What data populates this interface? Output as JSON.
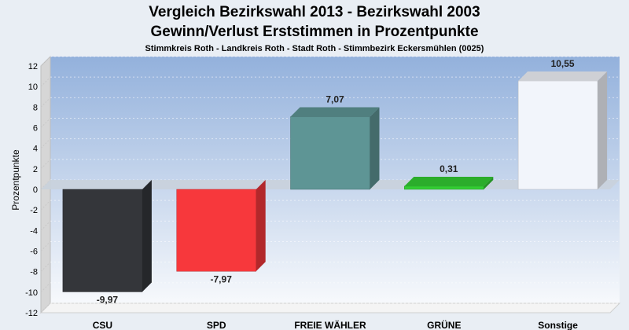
{
  "chart_data": {
    "type": "bar",
    "title": [
      "Vergleich Bezirkswahl 2013 - Bezirkswahl 2003",
      "Gewinn/Verlust Erststimmen in Prozentpunkte"
    ],
    "subtitle": "Stimmkreis Roth - Landkreis Roth - Stadt Roth - Stimmbezirk Eckersmühlen (0025)",
    "ylabel": "Prozentpunkte",
    "xlabel": "",
    "categories": [
      "CSU",
      "SPD",
      "FREIE WÄHLER",
      "GRÜNE",
      "Sonstige"
    ],
    "values": [
      -9.97,
      -7.97,
      7.07,
      0.31,
      10.55
    ],
    "value_labels": [
      "-9,97",
      "-7,97",
      "7,07",
      "0,31",
      "10,55"
    ],
    "colors": [
      "#34363a",
      "#f7383c",
      "#5e9595",
      "#33cc33",
      "#f2f5fb"
    ],
    "ylim": [
      -12,
      12
    ],
    "yticks": [
      12,
      10,
      8,
      6,
      4,
      2,
      0,
      -2,
      -4,
      -6,
      -8,
      -10,
      -12
    ],
    "grid": true,
    "legend": "none"
  }
}
